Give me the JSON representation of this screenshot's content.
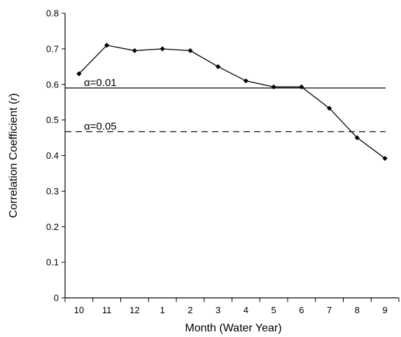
{
  "chart_data": {
    "type": "line",
    "categories": [
      "10",
      "11",
      "12",
      "1",
      "2",
      "3",
      "4",
      "5",
      "6",
      "7",
      "8",
      "9"
    ],
    "values": [
      0.63,
      0.71,
      0.695,
      0.7,
      0.695,
      0.65,
      0.61,
      0.593,
      0.593,
      0.533,
      0.45,
      0.392
    ],
    "xlabel": "Month (Water Year)",
    "ylabel_main": "Correlation Coefficient (",
    "ylabel_var": "r",
    "ylabel_end": ")",
    "ylim": [
      0,
      0.8
    ],
    "yticks": [
      "0",
      "0.1",
      "0.2",
      "0.3",
      "0.4",
      "0.5",
      "0.6",
      "0.7",
      "0.8"
    ],
    "grid": false,
    "legend": "none",
    "reference_lines": [
      {
        "label": "α=0.01",
        "value": 0.59,
        "style": "solid"
      },
      {
        "label": "α=0.05",
        "value": 0.467,
        "style": "dashed"
      }
    ],
    "line_color": "#000000",
    "marker": "diamond"
  }
}
